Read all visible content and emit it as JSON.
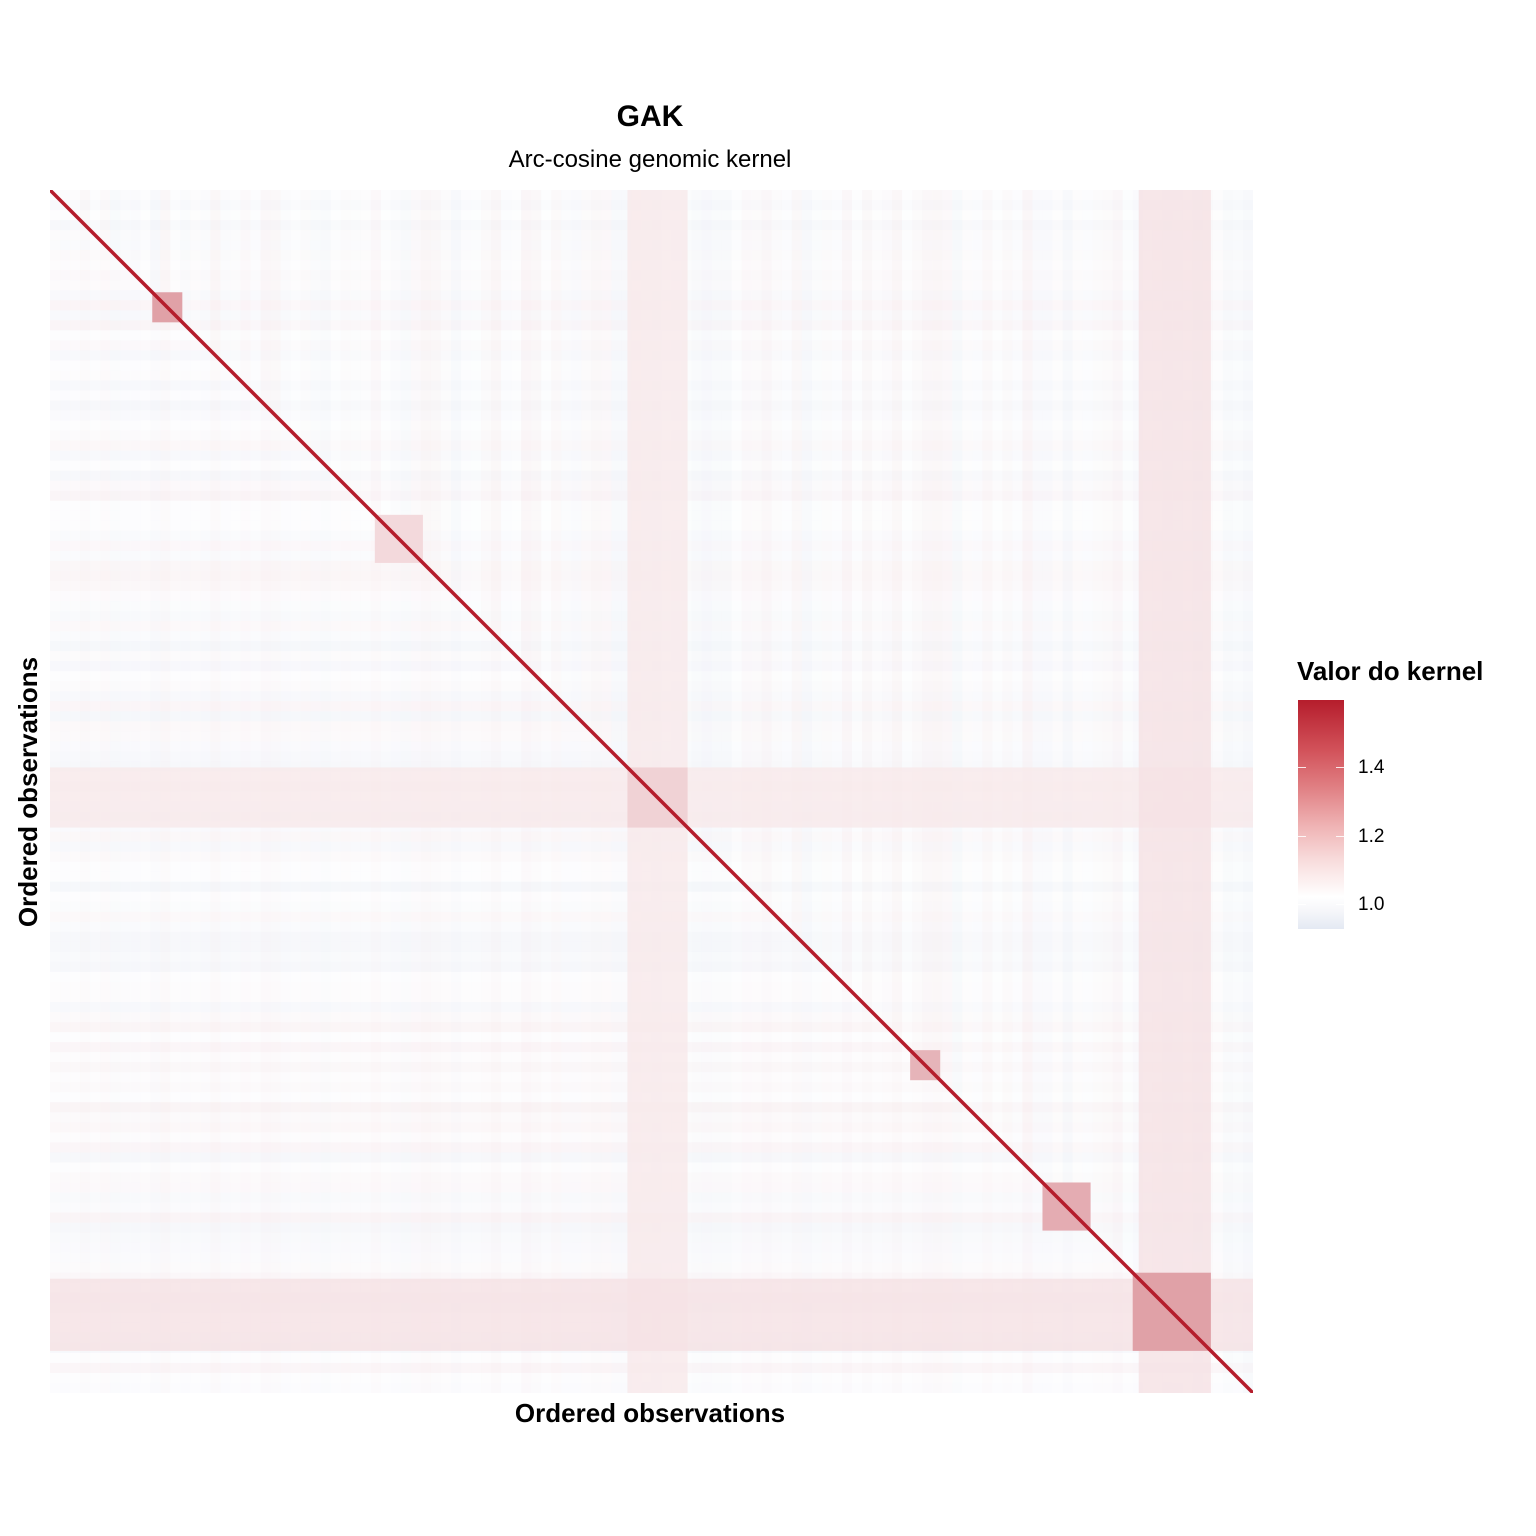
{
  "chart_data": {
    "type": "heatmap",
    "title": "GAK",
    "subtitle": "Arc-cosine genomic kernel",
    "xlabel": "Ordered observations",
    "ylabel": "Ordered observations",
    "legend": {
      "title": "Valor do kernel",
      "position": "right",
      "ticks": [
        {
          "value": 1.4,
          "label": "1.4"
        },
        {
          "value": 1.2,
          "label": "1.2"
        },
        {
          "value": 1.0,
          "label": "1.0"
        }
      ],
      "range": [
        0.93,
        1.6
      ]
    },
    "colors": {
      "low": "#e4e9f3",
      "mid": "#ffffff",
      "high": "#b51d2c"
    },
    "matrix": {
      "n": 400,
      "diagonal_value": 1.6,
      "background_value": 1.0,
      "cluster_blocks": [
        {
          "start": 0.085,
          "end": 0.11,
          "value": 1.25
        },
        {
          "start": 0.27,
          "end": 0.31,
          "value": 1.1
        },
        {
          "start": 0.48,
          "end": 0.53,
          "value": 1.12
        },
        {
          "start": 0.715,
          "end": 0.74,
          "value": 1.2
        },
        {
          "start": 0.825,
          "end": 0.865,
          "value": 1.22
        },
        {
          "start": 0.9,
          "end": 0.965,
          "value": 1.25
        }
      ],
      "high_bands": [
        {
          "start": 0.48,
          "end": 0.53,
          "value": 1.06
        },
        {
          "start": 0.905,
          "end": 0.965,
          "value": 1.08
        }
      ]
    }
  }
}
